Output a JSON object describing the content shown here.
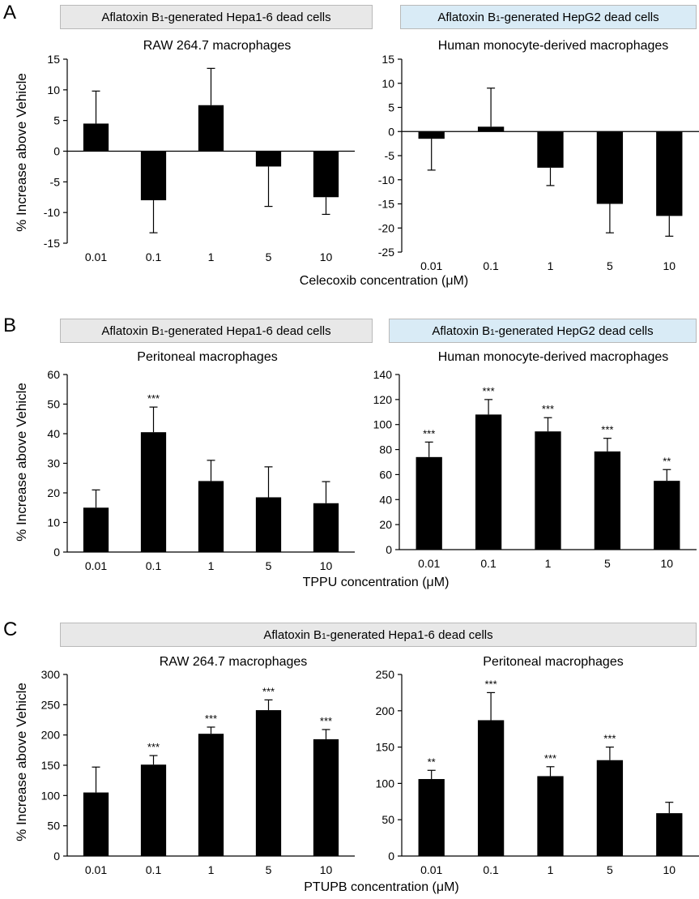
{
  "panels": {
    "A": {
      "letter": "A",
      "left_box": {
        "prefix": "Aflatoxin B",
        "sub": "1",
        "suffix": "-generated Hepa1-6 dead cells"
      },
      "right_box": {
        "prefix": "Aflatoxin B",
        "sub": "1",
        "suffix": "-generated HepG2 dead cells"
      },
      "ylabel": "% Increase above Vehicle",
      "xlabel": "Celecoxib concentration (μM)"
    },
    "B": {
      "letter": "B",
      "left_box": {
        "prefix": "Aflatoxin B",
        "sub": "1",
        "suffix": "-generated Hepa1-6 dead cells"
      },
      "right_box": {
        "prefix": "Aflatoxin B",
        "sub": "1",
        "suffix": "-generated HepG2 dead cells"
      },
      "ylabel": "% Increase above Vehicle",
      "xlabel": "TPPU concentration  (μM)"
    },
    "C": {
      "letter": "C",
      "box": {
        "prefix": "Aflatoxin B",
        "sub": "1",
        "suffix": "-generated Hepa1-6 dead cells"
      },
      "ylabel": "% Increase above Vehicle",
      "xlabel": "PTUPB concentration (μM)"
    }
  },
  "chart_data": [
    {
      "id": "A-left",
      "type": "bar",
      "title": "RAW 264.7 macrophages",
      "categories": [
        "0.01",
        "0.1",
        "1",
        "5",
        "10"
      ],
      "values": [
        4.5,
        -8.0,
        7.5,
        -2.5,
        -7.5
      ],
      "errors": [
        5.3,
        5.3,
        6.0,
        6.5,
        2.8
      ],
      "significance": [
        "",
        "",
        "",
        "",
        ""
      ],
      "ylim": [
        -15,
        15
      ],
      "yticks": [
        -15,
        -10,
        -5,
        0,
        5,
        10,
        15
      ]
    },
    {
      "id": "A-right",
      "type": "bar",
      "title": "Human monocyte-derived macrophages",
      "categories": [
        "0.01",
        "0.1",
        "1",
        "5",
        "10"
      ],
      "values": [
        -1.5,
        1.0,
        -7.5,
        -15.0,
        -17.5
      ],
      "errors": [
        6.5,
        8.0,
        3.7,
        6.0,
        4.2
      ],
      "significance": [
        "",
        "",
        "",
        "",
        ""
      ],
      "ylim": [
        -25,
        15
      ],
      "yticks": [
        -25,
        -20,
        -15,
        -10,
        -5,
        0,
        5,
        10,
        15
      ]
    },
    {
      "id": "B-left",
      "type": "bar",
      "title": "Peritoneal macrophages",
      "categories": [
        "0.01",
        "0.1",
        "1",
        "5",
        "10"
      ],
      "values": [
        15,
        40.5,
        24,
        18.5,
        16.5
      ],
      "errors": [
        6,
        8.5,
        7,
        10.3,
        7.3
      ],
      "significance": [
        "",
        "***",
        "",
        "",
        ""
      ],
      "ylim": [
        0,
        60
      ],
      "yticks": [
        0,
        10,
        20,
        30,
        40,
        50,
        60
      ]
    },
    {
      "id": "B-right",
      "type": "bar",
      "title": "Human monocyte-derived macrophages",
      "categories": [
        "0.01",
        "0.1",
        "1",
        "5",
        "10"
      ],
      "values": [
        74,
        108,
        94.5,
        78.5,
        55
      ],
      "errors": [
        12,
        12,
        11,
        10.5,
        9
      ],
      "significance": [
        "***",
        "***",
        "***",
        "***",
        "**"
      ],
      "ylim": [
        0,
        140
      ],
      "yticks": [
        0,
        20,
        40,
        60,
        80,
        100,
        120,
        140
      ]
    },
    {
      "id": "C-left",
      "type": "bar",
      "title": "RAW 264.7 macrophages",
      "categories": [
        "0.01",
        "0.1",
        "1",
        "5",
        "10"
      ],
      "values": [
        105,
        151,
        202,
        241,
        193
      ],
      "errors": [
        42,
        15,
        11,
        17,
        16
      ],
      "significance": [
        "",
        "***",
        "***",
        "***",
        "***"
      ],
      "ylim": [
        0,
        300
      ],
      "yticks": [
        0,
        50,
        100,
        150,
        200,
        250,
        300
      ]
    },
    {
      "id": "C-right",
      "type": "bar",
      "title": "Peritoneal macrophages",
      "categories": [
        "0.01",
        "0.1",
        "1",
        "5",
        "10"
      ],
      "values": [
        106,
        187,
        110,
        132,
        59
      ],
      "errors": [
        12,
        38,
        13,
        18,
        15
      ],
      "significance": [
        "**",
        "***",
        "***",
        "***",
        ""
      ],
      "ylim": [
        0,
        250
      ],
      "yticks": [
        0,
        50,
        100,
        150,
        200,
        250
      ]
    }
  ]
}
